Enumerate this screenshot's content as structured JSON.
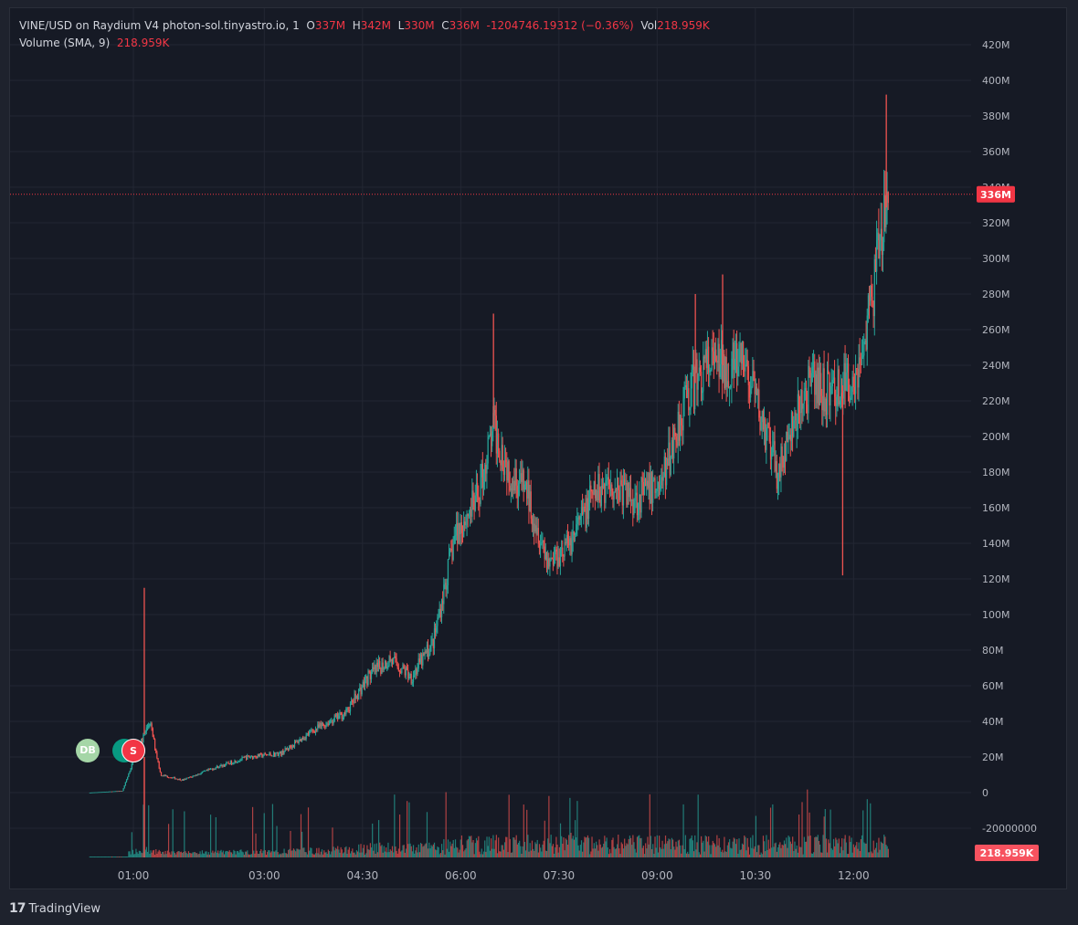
{
  "legend": {
    "symbol": "VINE/USD on Raydium V4 photon-sol.tinyastro.io, 1",
    "open_label": "O",
    "open": "337M",
    "high_label": "H",
    "high": "342M",
    "low_label": "L",
    "low": "330M",
    "close_label": "C",
    "close": "336M",
    "change": "-1204746.19312 (−0.36%)",
    "vol_label": "Vol",
    "vol": "218.959K"
  },
  "volume_legend": {
    "label": "Volume (SMA, 9)",
    "value": "218.959K"
  },
  "price_badge": "336M",
  "volume_badge": "218.959K",
  "markers": [
    {
      "text": "DB",
      "color": "#a5d6a7"
    },
    {
      "text": "",
      "color": "#089981"
    },
    {
      "text": "S",
      "color": "#f23645"
    }
  ],
  "footer": {
    "brand": "TradingView",
    "logo_icon": "tradingview-logo-icon"
  },
  "colors": {
    "up": "#26a69a",
    "down": "#ef5350",
    "last_line": "#f23645",
    "grid": "#232733",
    "text": "#b2b5be"
  },
  "chart_data": {
    "type": "candlestick",
    "y_ticks": [
      "420M",
      "400M",
      "380M",
      "360M",
      "340M",
      "320M",
      "300M",
      "280M",
      "260M",
      "240M",
      "220M",
      "200M",
      "180M",
      "160M",
      "140M",
      "120M",
      "100M",
      "80M",
      "60M",
      "40M",
      "20M",
      "0",
      "-20000000"
    ],
    "ylim": [
      -20000000,
      420000000
    ],
    "x_ticks": [
      "01:00",
      "03:00",
      "04:30",
      "06:00",
      "07:30",
      "09:00",
      "10:30",
      "12:00"
    ],
    "last_price": 336000000,
    "price_path": [
      {
        "t": "00:20",
        "v": 0
      },
      {
        "t": "00:50",
        "v": 1000000
      },
      {
        "t": "01:00",
        "v": 18000000
      },
      {
        "t": "01:15",
        "v": 40000000
      },
      {
        "t": "01:25",
        "v": 10000000
      },
      {
        "t": "01:45",
        "v": 7000000
      },
      {
        "t": "02:15",
        "v": 14000000
      },
      {
        "t": "02:45",
        "v": 20000000
      },
      {
        "t": "03:15",
        "v": 22000000
      },
      {
        "t": "03:45",
        "v": 35000000
      },
      {
        "t": "04:15",
        "v": 45000000
      },
      {
        "t": "04:35",
        "v": 65000000
      },
      {
        "t": "04:55",
        "v": 75000000
      },
      {
        "t": "05:15",
        "v": 65000000
      },
      {
        "t": "05:35",
        "v": 85000000
      },
      {
        "t": "05:55",
        "v": 145000000
      },
      {
        "t": "06:15",
        "v": 165000000
      },
      {
        "t": "06:30",
        "v": 205000000
      },
      {
        "t": "06:45",
        "v": 180000000
      },
      {
        "t": "07:00",
        "v": 170000000
      },
      {
        "t": "07:20",
        "v": 130000000
      },
      {
        "t": "07:40",
        "v": 140000000
      },
      {
        "t": "08:00",
        "v": 165000000
      },
      {
        "t": "08:15",
        "v": 175000000
      },
      {
        "t": "08:40",
        "v": 165000000
      },
      {
        "t": "09:05",
        "v": 175000000
      },
      {
        "t": "09:25",
        "v": 220000000
      },
      {
        "t": "09:45",
        "v": 240000000
      },
      {
        "t": "10:05",
        "v": 240000000
      },
      {
        "t": "10:20",
        "v": 240000000
      },
      {
        "t": "10:35",
        "v": 210000000
      },
      {
        "t": "10:50",
        "v": 180000000
      },
      {
        "t": "11:05",
        "v": 205000000
      },
      {
        "t": "11:20",
        "v": 230000000
      },
      {
        "t": "11:35",
        "v": 225000000
      },
      {
        "t": "11:55",
        "v": 230000000
      },
      {
        "t": "12:05",
        "v": 240000000
      },
      {
        "t": "12:15",
        "v": 270000000
      },
      {
        "t": "12:25",
        "v": 310000000
      },
      {
        "t": "12:32",
        "v": 336000000
      }
    ],
    "spikes": [
      {
        "t": "01:10",
        "high": 115000000
      },
      {
        "t": "06:30",
        "high": 269000000
      },
      {
        "t": "09:35",
        "high": 280000000
      },
      {
        "t": "10:00",
        "high": 291000000
      },
      {
        "t": "11:50",
        "low": 122000000
      },
      {
        "t": "12:30",
        "high": 392000000
      }
    ],
    "volume_series": "Volume (SMA, 9)"
  }
}
